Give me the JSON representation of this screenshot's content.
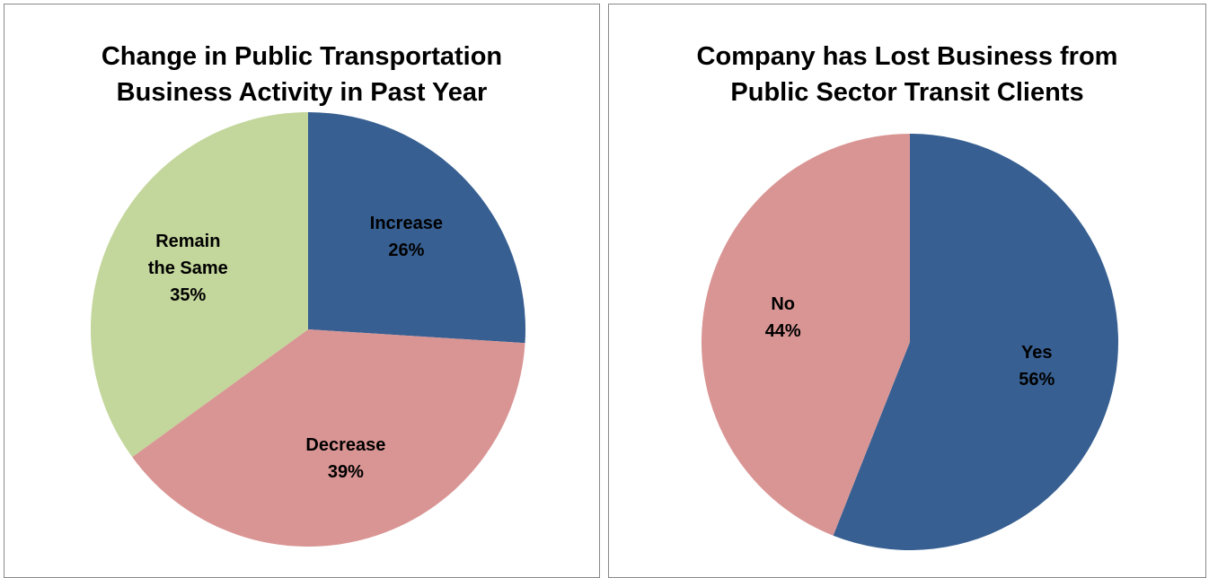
{
  "chart_data": [
    {
      "type": "pie",
      "title": "Change in Public Transportation Business Activity in Past Year",
      "categories": [
        "Increase",
        "Decrease",
        "Remain the Same"
      ],
      "values": [
        26,
        39,
        35
      ],
      "value_labels": [
        "26%",
        "39%",
        "35%"
      ],
      "colors": [
        "#375f91",
        "#d99594",
        "#c3d69b"
      ]
    },
    {
      "type": "pie",
      "title": "Company has Lost Business from Public Sector Transit Clients",
      "categories": [
        "Yes",
        "No"
      ],
      "values": [
        56,
        44
      ],
      "value_labels": [
        "56%",
        "44%"
      ],
      "colors": [
        "#375f91",
        "#d99594"
      ]
    }
  ]
}
